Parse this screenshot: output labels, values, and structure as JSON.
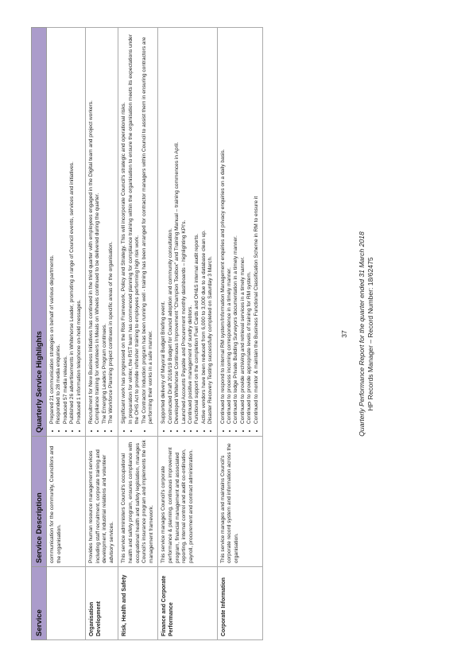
{
  "table": {
    "headers": [
      "Service",
      "Service Description",
      "Quarterly Service Highlights"
    ],
    "rows": [
      {
        "service": "",
        "description": "communication for the community, Councillors and the organisation.",
        "highlights": [
          "Prepared 21 communication strategies on behalf of various departments.",
          "Responded to 28 media enquiries.",
          "Produced 57 media releases.",
          "Published 26 advertisements in Whitehorse Leader, promoting a range of Council events, services and initiatives.",
          "Produced 1 information telephone on-hold messages."
        ]
      },
      {
        "service": "Organisation Development",
        "description": "Provides human resource management services including staff recruitment, corporate training and development, industrial relations and volunteer advisory services.",
        "highlights": [
          "Recruitment for New Business Initiatives has continued in the third quarter with employees engaged in the Digital team and project workers.",
          "Compliance training for volunteers in Meals on Wheels continued to be delivered during the quarter.",
          "The Emerging Leaders Program continues.",
          "The Workforce Planning project continues in specific areas of the organisation."
        ]
      },
      {
        "service": "Risk, Health and Safety",
        "description": "This service administers Council's occupational health and safety program, ensures compliance with occupational health and safety legislation, manages Council's insurance program and implements the risk management framework.",
        "highlights": [
          "Significant work has progressed on the Risk Framework, Policy and Strategy. This will incorporate Council's strategic and operational risks.",
          "In preparation for winter, the RST team has commenced planning for compliance training within the organisation to ensure the organisation meets its expectations under the OHS Act to provide refresher training to employees performing high risk work.",
          "The Contractor Induction program has been running well - training has been arranged for contractor managers within Council to assist them in ensuring contractors are performing their works in a safe manner."
        ]
      },
      {
        "service": "Finance and Corporate Performance",
        "description": "This service manages Council's corporate performance & planning, continuous improvement program, financial management and associated reporting, internal control and audit co-ordination, payroll, procurement and contract administration.",
        "highlights": [
          "Supported delivery of Mayoral Budget Briefing event.",
          "Constructed Draft 2018/19 Budget for Council adoption and community consultation.",
          "Developed Whitehorse Continuous Improvement \"Champion Toolbox\" and Training Manual – training commences in April.",
          "Launched Accounts Payable and Procurement monthly dashboards – highlighting KPI's.",
          "Continued positive management of sundry debtors.",
          "Functional support on the completion Fuel Cards and OH&S internal audit reports.",
          "Active vendors have been reduced from 6,000 to 3,000 due to a database clean up.",
          "Disaster Recovery Testing successfully completed on Saturday 3 March."
        ]
      },
      {
        "service": "Corporate Information",
        "description": "This service manages and maintains Council's corporate record system and information across the organisation.",
        "highlights": [
          "Continued to respond to internal RM system/Information Management enquiries and privacy enquiries on a daily basis.",
          "Continued to process incoming correspondence in a timely manner.",
          "Continued to lodge Private Building Surveyors documentation in a timely manner.",
          "Continued to provide archiving and retrieval services in a timely manner.",
          "Continued to provide appropriate levels of training for RM system.",
          "Continued to monitor & maintain the Business Functional Classification Scheme in RM to ensure it"
        ]
      }
    ]
  },
  "footer": {
    "page_number": "37",
    "report_title": "Quarterly Performance Report for the quarter ended 31 March 2018",
    "record_line": "HP Records Manager – Record Number: 18/62475"
  }
}
